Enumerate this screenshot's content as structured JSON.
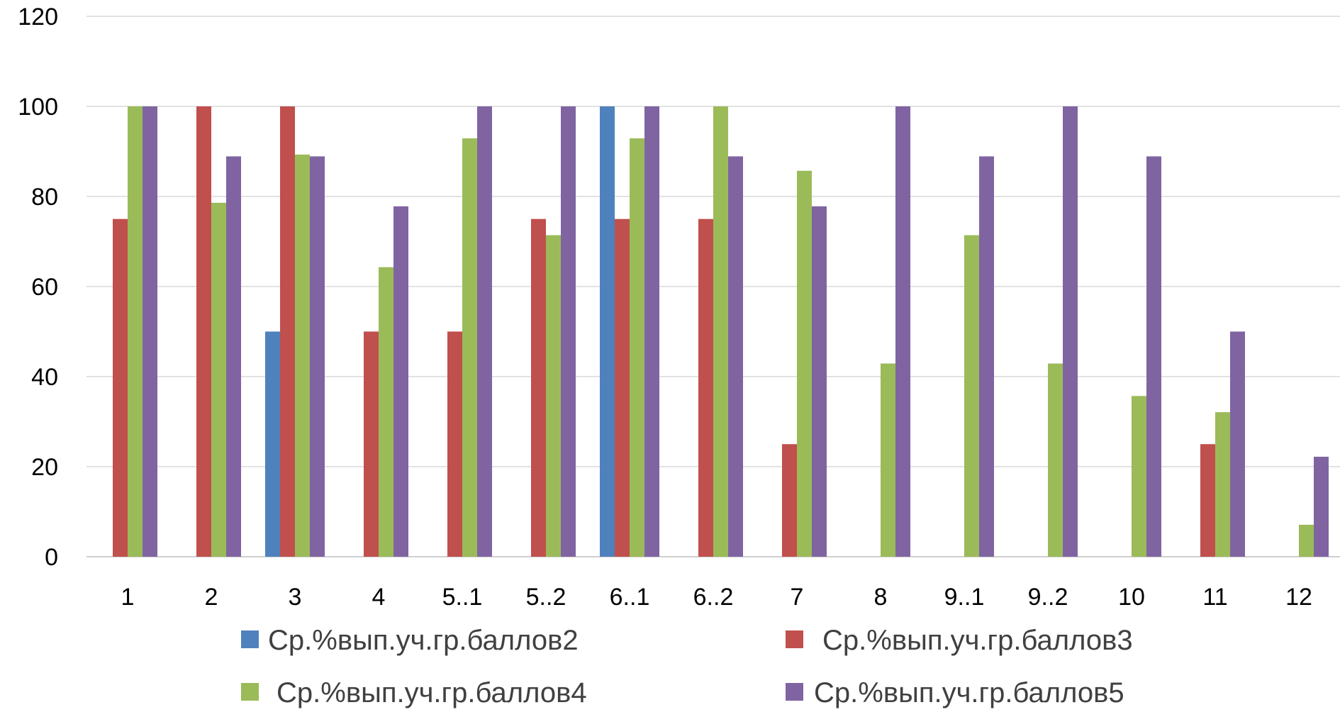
{
  "chart_data": {
    "type": "bar",
    "title": "",
    "xlabel": "",
    "ylabel": "",
    "ylim": [
      0,
      120
    ],
    "yticks": [
      0,
      20,
      40,
      60,
      80,
      100,
      120
    ],
    "grid": true,
    "legend_position": "bottom",
    "categories": [
      "1",
      "2",
      "3",
      "4",
      "5..1",
      "5..2",
      "6..1",
      "6..2",
      "7",
      "8",
      "9..1",
      "9..2",
      "10",
      "11",
      "12"
    ],
    "series": [
      {
        "name": "Ср.%вып.уч.гр.баллов2",
        "color": "#4f81bd",
        "values": [
          0,
          0,
          50,
          0,
          0,
          0,
          100,
          0,
          0,
          0,
          0,
          0,
          0,
          0,
          0
        ]
      },
      {
        "name": "Ср.%вып.уч.гр.баллов3",
        "color": "#c0504d",
        "values": [
          75,
          100,
          100,
          50,
          50,
          75,
          75,
          75,
          25,
          0,
          0,
          0,
          0,
          25,
          0
        ]
      },
      {
        "name": "Ср.%вып.уч.гр.баллов4",
        "color": "#9bbb59",
        "values": [
          100,
          78.6,
          89.3,
          64.3,
          92.9,
          71.4,
          92.9,
          100,
          85.7,
          42.9,
          71.4,
          42.9,
          35.7,
          32.1,
          7.1
        ]
      },
      {
        "name": "Ср.%вып.уч.гр.баллов5",
        "color": "#8064a2",
        "values": [
          100,
          88.9,
          88.9,
          77.8,
          100,
          100,
          100,
          88.9,
          77.8,
          100,
          88.9,
          100,
          88.9,
          50,
          22.2
        ]
      }
    ]
  }
}
